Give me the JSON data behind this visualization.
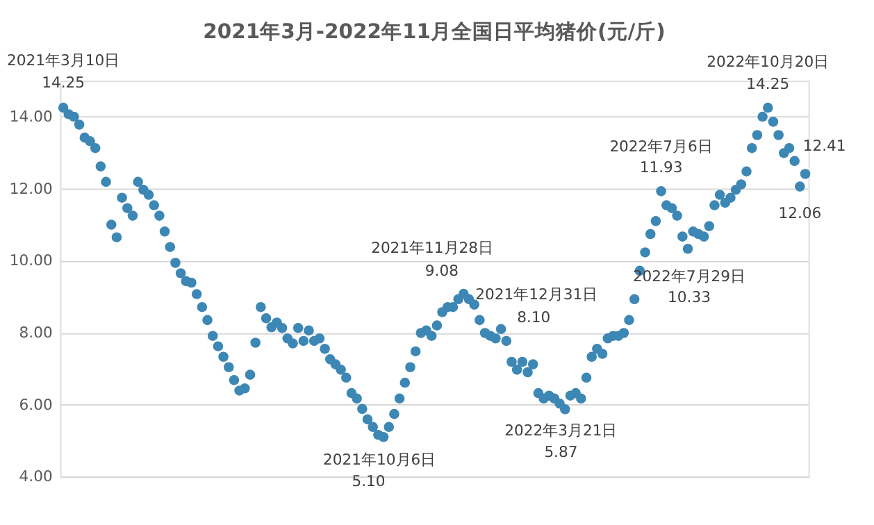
{
  "chart_data": {
    "type": "scatter",
    "title": "2021年3月-2022年11月全国日平均猪价(元/斤)",
    "categories": [
      null,
      null,
      null,
      null,
      null,
      null,
      null,
      null,
      null,
      null,
      null,
      null,
      null,
      null,
      null,
      null,
      null,
      null,
      null,
      null,
      null,
      null,
      null,
      null,
      null,
      null,
      null,
      null,
      null,
      null,
      null,
      null,
      null,
      null,
      null,
      null,
      null,
      null,
      null,
      null,
      null,
      null,
      null,
      null,
      null,
      null,
      null,
      null,
      null,
      null,
      null,
      null,
      null,
      null,
      null,
      null,
      null,
      null,
      null,
      null,
      null,
      null,
      null,
      null,
      null,
      null,
      null,
      null,
      null,
      null,
      null,
      null,
      null,
      null,
      null,
      null,
      null,
      null,
      null,
      null,
      null,
      null,
      null,
      null,
      null,
      null,
      null,
      null,
      null,
      null,
      null,
      null,
      null,
      null,
      null,
      null,
      null,
      null,
      null,
      null,
      null,
      null,
      null,
      null,
      null,
      null,
      null,
      null,
      null,
      null,
      null,
      null,
      null,
      null,
      null,
      null,
      null,
      null,
      null,
      null,
      null,
      null,
      null,
      null,
      null,
      null,
      null,
      null,
      null,
      null,
      null,
      null,
      null,
      null,
      null,
      null,
      null,
      null,
      null,
      null
    ],
    "series": [
      {
        "color": "#3d87b5",
        "values": [
          14.25,
          14.07,
          14.0,
          13.78,
          13.42,
          13.32,
          13.13,
          12.62,
          12.19,
          11.0,
          10.65,
          11.75,
          11.46,
          11.25,
          12.19,
          11.97,
          11.83,
          11.54,
          11.25,
          10.81,
          10.38,
          9.94,
          9.65,
          9.43,
          9.39,
          9.07,
          8.71,
          8.35,
          7.91,
          7.62,
          7.33,
          7.04,
          6.68,
          6.39,
          6.45,
          6.83,
          7.72,
          8.71,
          8.4,
          8.15,
          8.28,
          8.13,
          7.84,
          7.7,
          8.13,
          7.77,
          8.06,
          7.77,
          7.84,
          7.55,
          7.26,
          7.12,
          6.97,
          6.75,
          6.32,
          6.17,
          5.88,
          5.59,
          5.38,
          5.16,
          5.1,
          5.38,
          5.74,
          6.17,
          6.61,
          7.04,
          7.48,
          7.99,
          8.06,
          7.91,
          8.2,
          8.57,
          8.71,
          8.71,
          8.93,
          9.08,
          8.93,
          8.78,
          8.35,
          7.99,
          7.91,
          7.84,
          8.1,
          7.77,
          7.19,
          6.97,
          7.19,
          6.9,
          7.12,
          6.32,
          6.17,
          6.25,
          6.17,
          6.03,
          5.87,
          6.25,
          6.32,
          6.17,
          6.75,
          7.33,
          7.55,
          7.41,
          7.84,
          7.91,
          7.91,
          7.99,
          8.35,
          8.93,
          9.72,
          10.23,
          10.74,
          11.1,
          11.93,
          11.54,
          11.46,
          11.25,
          10.67,
          10.33,
          10.81,
          10.74,
          10.67,
          10.96,
          11.54,
          11.83,
          11.61,
          11.75,
          11.97,
          12.12,
          12.48,
          13.13,
          13.49,
          14.0,
          14.25,
          13.86,
          13.49,
          12.99,
          13.13,
          12.77,
          12.06,
          12.41
        ],
        "value_labels": [
          "14.25",
          null,
          null,
          null,
          null,
          null,
          null,
          null,
          null,
          null,
          null,
          null,
          null,
          null,
          null,
          null,
          null,
          null,
          null,
          null,
          null,
          null,
          null,
          null,
          null,
          null,
          null,
          null,
          null,
          null,
          null,
          null,
          null,
          null,
          null,
          null,
          null,
          null,
          null,
          null,
          null,
          null,
          null,
          null,
          null,
          null,
          null,
          null,
          null,
          null,
          null,
          null,
          null,
          null,
          null,
          null,
          null,
          null,
          null,
          null,
          "5.10",
          null,
          null,
          null,
          null,
          null,
          null,
          null,
          null,
          null,
          null,
          null,
          null,
          null,
          null,
          "9.08",
          null,
          null,
          null,
          null,
          null,
          null,
          "8.10",
          null,
          null,
          null,
          null,
          null,
          null,
          null,
          null,
          null,
          null,
          null,
          "5.87",
          null,
          null,
          null,
          null,
          null,
          null,
          null,
          null,
          null,
          null,
          null,
          null,
          null,
          null,
          null,
          null,
          null,
          "11.93",
          null,
          null,
          null,
          null,
          "10.33",
          null,
          null,
          null,
          null,
          null,
          null,
          null,
          null,
          null,
          null,
          null,
          null,
          null,
          null,
          "14.25",
          null,
          null,
          null,
          null,
          null,
          "12.06",
          "12.41"
        ]
      }
    ],
    "ylim": [
      4,
      15
    ],
    "yticks": [
      {
        "value": 4,
        "label": "4.00"
      },
      {
        "value": 6,
        "label": "6.00"
      },
      {
        "value": 8,
        "label": "8.00"
      },
      {
        "value": 10,
        "label": "10.00"
      },
      {
        "value": 12,
        "label": "12.00"
      },
      {
        "value": 14,
        "label": "14.00"
      }
    ],
    "annotations": [
      "2021年3月10日",
      "2021年10月6日",
      "2021年11月28日",
      "2021年12月31日",
      "2022年3月21日",
      "2022年7月6日",
      "2022年7月29日",
      "2022年10月20日"
    ],
    "grid": "y",
    "marker": "circle",
    "tick_labels": "y",
    "legend": false
  }
}
